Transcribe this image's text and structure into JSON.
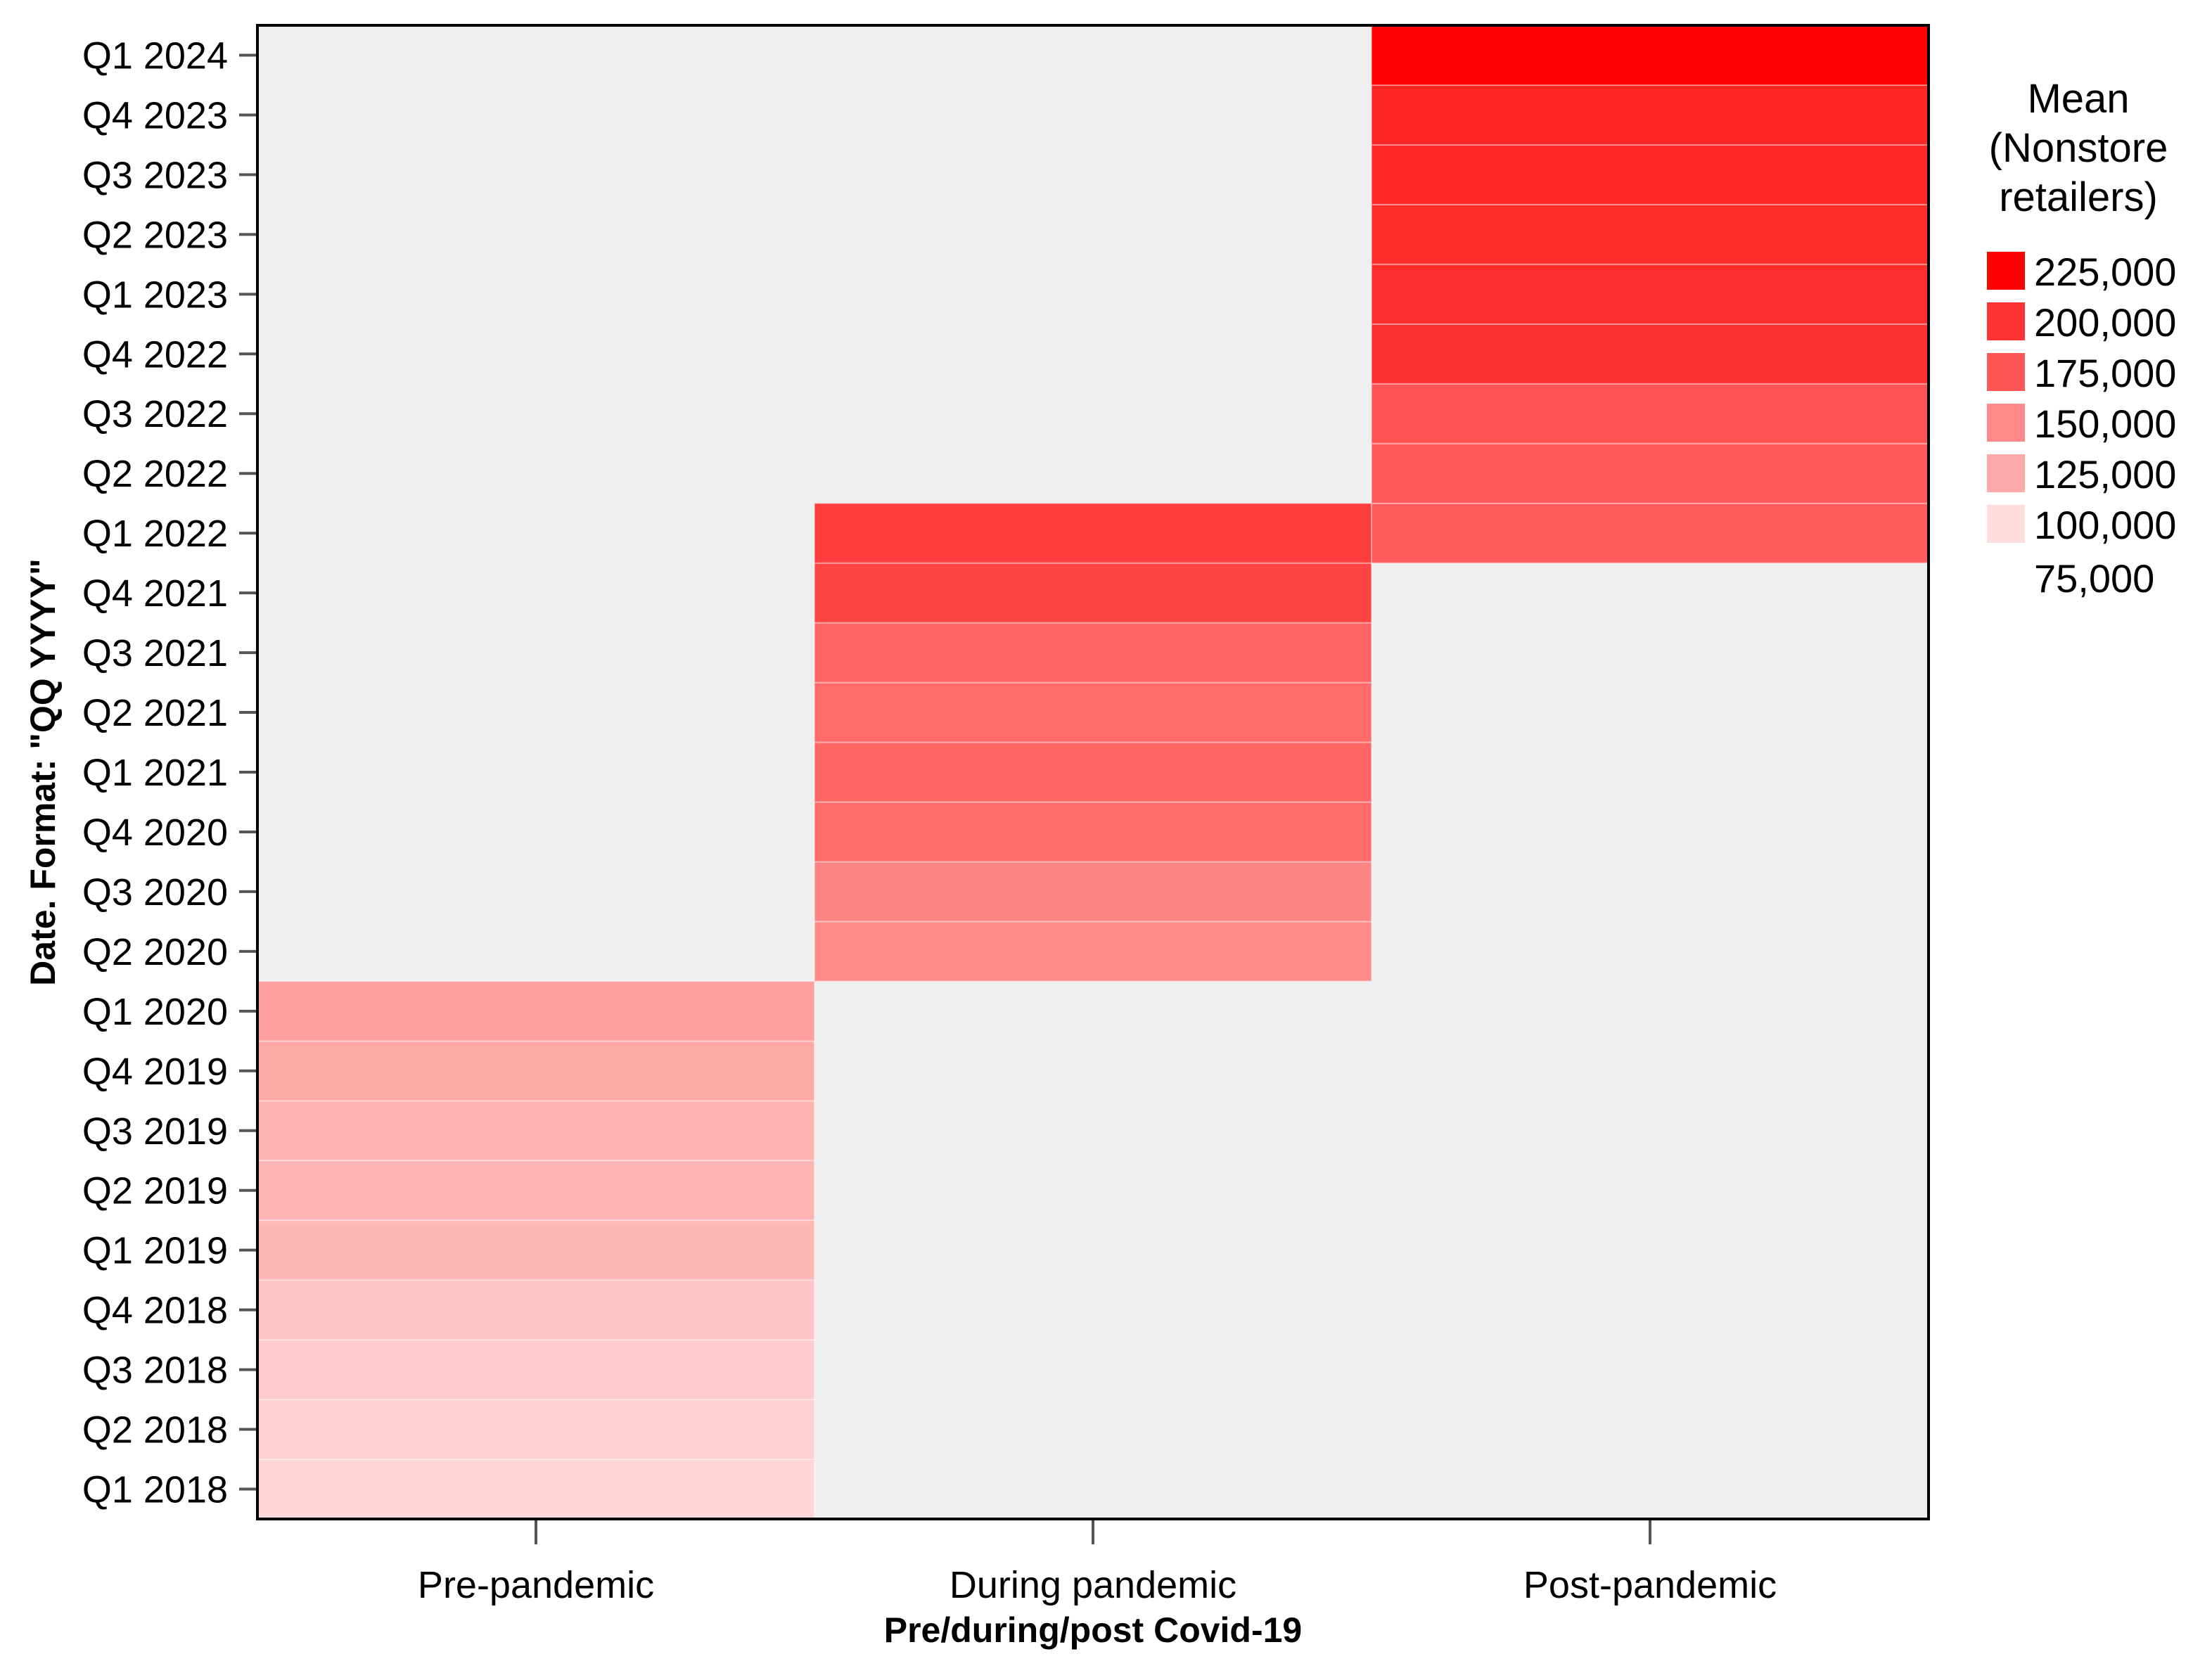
{
  "chart_data": {
    "type": "heatmap",
    "title": "",
    "xlabel": "Pre/during/post Covid-19",
    "ylabel": "Date.  Format:  \"QQ YYYY\"",
    "categories": [
      "Pre-pandemic",
      "During pandemic",
      "Post-pandemic"
    ],
    "y_categories": [
      "Q1 2018",
      "Q2 2018",
      "Q3 2018",
      "Q4 2018",
      "Q1 2019",
      "Q2 2019",
      "Q3 2019",
      "Q4 2019",
      "Q1 2020",
      "Q2 2020",
      "Q3 2020",
      "Q4 2020",
      "Q1 2021",
      "Q2 2021",
      "Q3 2021",
      "Q4 2021",
      "Q1 2022",
      "Q2 2022",
      "Q3 2022",
      "Q4 2022",
      "Q1 2023",
      "Q2 2023",
      "Q3 2023",
      "Q4 2023",
      "Q1 2024"
    ],
    "values": [
      [
        88000,
        null,
        null
      ],
      [
        92000,
        null,
        null
      ],
      [
        95000,
        null,
        null
      ],
      [
        100000,
        null,
        null
      ],
      [
        108000,
        null,
        null
      ],
      [
        110000,
        null,
        null
      ],
      [
        111000,
        null,
        null
      ],
      [
        118000,
        null,
        null
      ],
      [
        125000,
        null,
        null
      ],
      [
        null,
        138000,
        null
      ],
      [
        null,
        142000,
        null
      ],
      [
        null,
        160000,
        null
      ],
      [
        null,
        162000,
        null
      ],
      [
        null,
        160000,
        null
      ],
      [
        null,
        163000,
        null
      ],
      [
        null,
        185000,
        null
      ],
      [
        null,
        190000,
        170000
      ],
      [
        null,
        null,
        171000
      ],
      [
        null,
        null,
        176000
      ],
      [
        null,
        null,
        198000
      ],
      [
        null,
        null,
        200000
      ],
      [
        null,
        null,
        201000
      ],
      [
        null,
        null,
        203000
      ],
      [
        null,
        null,
        205000
      ],
      [
        null,
        null,
        228000
      ]
    ],
    "legend": {
      "title_lines": [
        "Mean",
        "(Nonstore",
        "retailers)"
      ],
      "entries": [
        {
          "label": "225,000",
          "color": "#ff0000"
        },
        {
          "label": "200,000",
          "color": "#ff3333"
        },
        {
          "label": "175,000",
          "color": "#ff5555"
        },
        {
          "label": "150,000",
          "color": "#ff8888"
        },
        {
          "label": "125,000",
          "color": "#ffaaaa"
        },
        {
          "label": "100,000",
          "color": "#ffdddd"
        }
      ],
      "bottom_label": "75,000",
      "placement": "right"
    },
    "color_range": [
      75000,
      230000
    ],
    "colors": {
      "empty_cell": "#efefef",
      "low": "#ffeaea",
      "high": "#ff0000",
      "text": "#000000",
      "tick": "#555555"
    },
    "grid": false
  }
}
